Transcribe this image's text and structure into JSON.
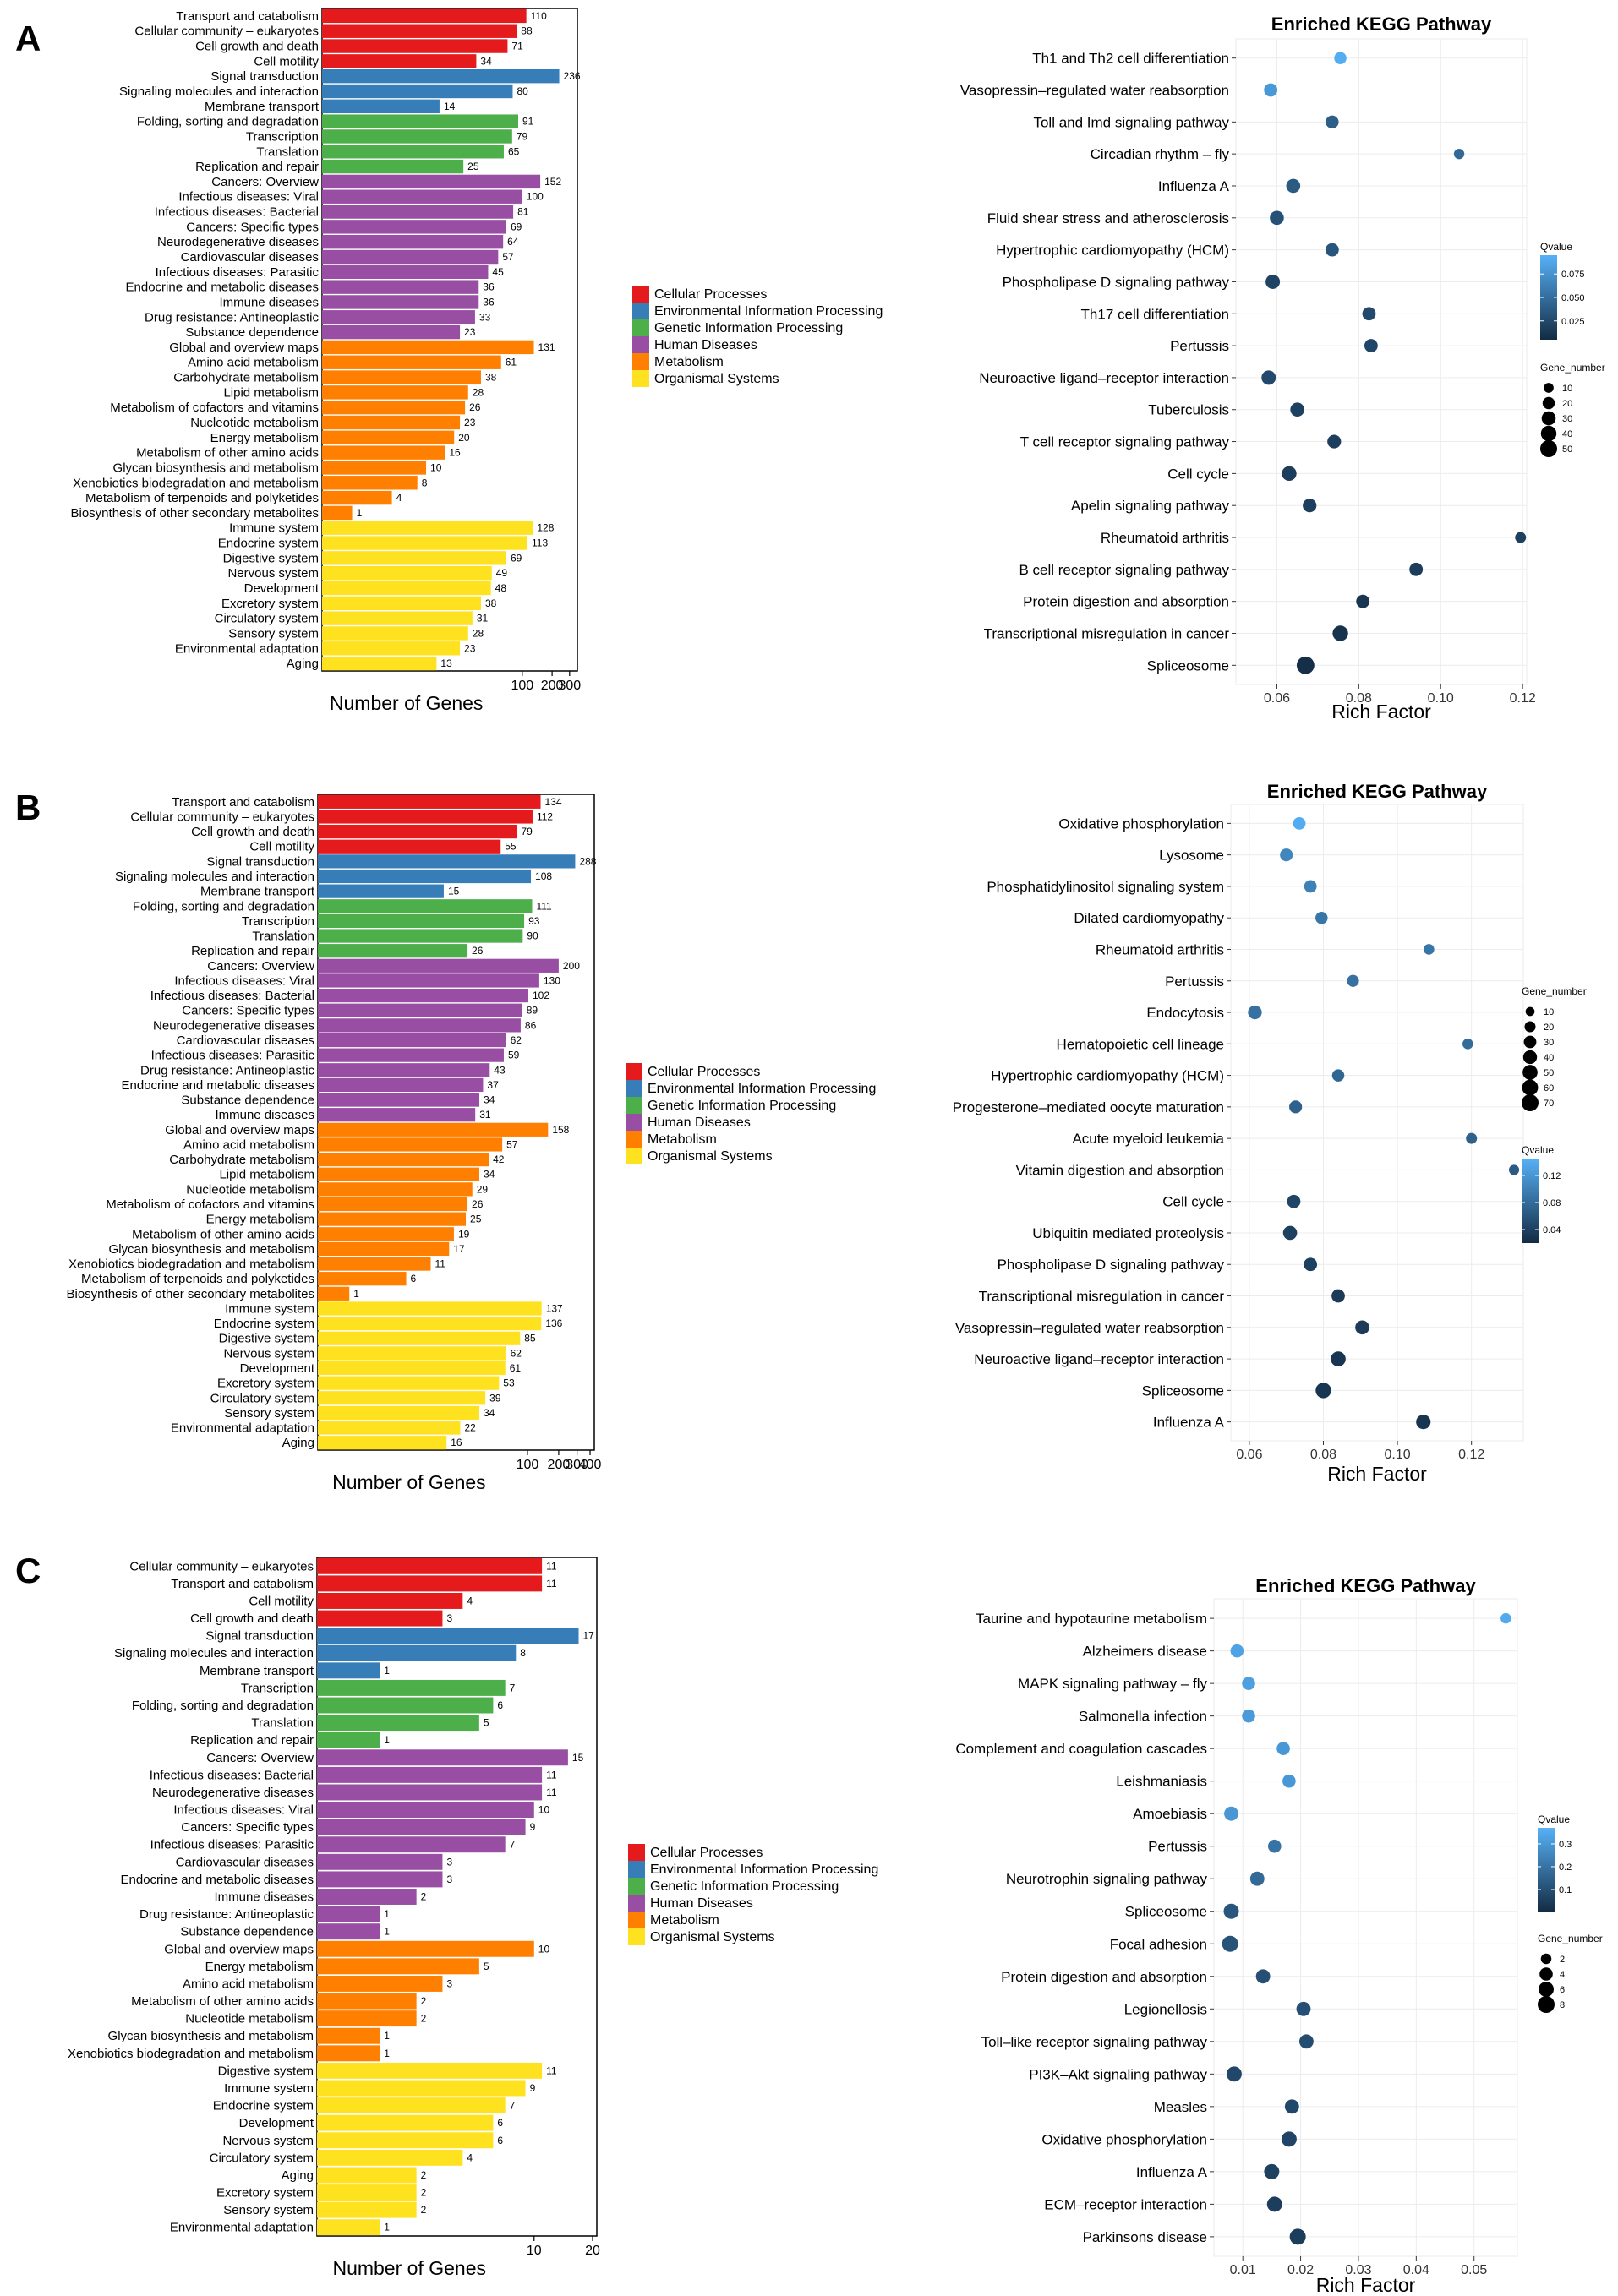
{
  "category_names": [
    "Cellular Processes",
    "Environmental Information Processing",
    "Genetic Information Processing",
    "Human Diseases",
    "Metabolism",
    "Organismal Systems"
  ],
  "category_colors": [
    "#e41a1c",
    "#377eb8",
    "#4daf4a",
    "#984ea3",
    "#ff7f00",
    "#ffe21f"
  ],
  "chart_data": [
    {
      "panel": "A",
      "type": "bar",
      "xlabel": "Number of Genes",
      "xticks": [
        100,
        200,
        300
      ],
      "xmax": 360,
      "scale": "log10",
      "categories": [
        "Transport and catabolism",
        "Cellular community – eukaryotes",
        "Cell growth and death",
        "Cell motility",
        "Signal transduction",
        "Signaling molecules and interaction",
        "Membrane transport",
        "Folding, sorting and degradation",
        "Transcription",
        "Translation",
        "Replication and repair",
        "Cancers: Overview",
        "Infectious diseases: Viral",
        "Infectious diseases: Bacterial",
        "Cancers: Specific types",
        "Neurodegenerative diseases",
        "Cardiovascular diseases",
        "Infectious diseases: Parasitic",
        "Endocrine and metabolic diseases",
        "Immune diseases",
        "Drug resistance: Antineoplastic",
        "Substance dependence",
        "Global and overview maps",
        "Amino acid metabolism",
        "Carbohydrate metabolism",
        "Lipid metabolism",
        "Metabolism of cofactors and vitamins",
        "Nucleotide metabolism",
        "Energy metabolism",
        "Metabolism of other amino acids",
        "Glycan biosynthesis and metabolism",
        "Xenobiotics biodegradation and metabolism",
        "Metabolism of terpenoids and polyketides",
        "Biosynthesis of other secondary metabolites",
        "Immune system",
        "Endocrine system",
        "Digestive system",
        "Nervous system",
        "Development",
        "Excretory system",
        "Circulatory system",
        "Sensory system",
        "Environmental adaptation",
        "Aging"
      ],
      "values": [
        110,
        88,
        71,
        34,
        236,
        80,
        14,
        91,
        79,
        65,
        25,
        152,
        100,
        81,
        69,
        64,
        57,
        45,
        36,
        36,
        33,
        23,
        131,
        61,
        38,
        28,
        26,
        23,
        20,
        16,
        10,
        8,
        4,
        1,
        128,
        113,
        69,
        49,
        48,
        38,
        31,
        28,
        23,
        13
      ],
      "groups": [
        0,
        0,
        0,
        0,
        1,
        1,
        1,
        2,
        2,
        2,
        2,
        3,
        3,
        3,
        3,
        3,
        3,
        3,
        3,
        3,
        3,
        3,
        4,
        4,
        4,
        4,
        4,
        4,
        4,
        4,
        4,
        4,
        4,
        4,
        5,
        5,
        5,
        5,
        5,
        5,
        5,
        5,
        5,
        5
      ]
    },
    {
      "panel": "A",
      "type": "scatter",
      "title": "Enriched KEGG Pathway",
      "xlabel": "Rich Factor",
      "xlim": [
        0.05,
        0.121
      ],
      "xticks": [
        0.06,
        0.08,
        0.1,
        0.12
      ],
      "xtick_labels": [
        "0.06",
        "0.08",
        "0.10",
        "0.12"
      ],
      "pathways": [
        "Th1 and Th2 cell differentiation",
        "Vasopressin–regulated water reabsorption",
        "Toll and Imd signaling pathway",
        "Circadian rhythm – fly",
        "Influenza A",
        "Fluid shear stress and atherosclerosis",
        "Hypertrophic cardiomyopathy (HCM)",
        "Phospholipase D signaling pathway",
        "Th17 cell differentiation",
        "Pertussis",
        "Neuroactive ligand–receptor interaction",
        "Tuberculosis",
        "T cell receptor signaling pathway",
        "Cell cycle",
        "Apelin signaling pathway",
        "Rheumatoid arthritis",
        "B cell receptor signaling pathway",
        "Protein digestion and absorption",
        "Transcriptional misregulation in cancer",
        "Spliceosome"
      ],
      "rich_factor": [
        0.0755,
        0.0585,
        0.0735,
        0.1045,
        0.064,
        0.06,
        0.0735,
        0.059,
        0.0825,
        0.083,
        0.058,
        0.065,
        0.074,
        0.063,
        0.068,
        0.1195,
        0.094,
        0.081,
        0.0755,
        0.067
      ],
      "gene_number": [
        20,
        26,
        24,
        12,
        30,
        30,
        26,
        32,
        26,
        26,
        32,
        30,
        28,
        34,
        28,
        14,
        26,
        26,
        40,
        56
      ],
      "qvalue": [
        0.092,
        0.079,
        0.04,
        0.046,
        0.037,
        0.03,
        0.033,
        0.021,
        0.026,
        0.023,
        0.025,
        0.02,
        0.018,
        0.017,
        0.018,
        0.019,
        0.017,
        0.012,
        0.01,
        0.008
      ],
      "size_legend": {
        "title": "Gene_number",
        "values": [
          10,
          20,
          30,
          40,
          50
        ],
        "labels": [
          "10",
          "20",
          "30",
          "40",
          "50"
        ]
      },
      "color_legend": {
        "title": "Qvalue",
        "min": 0.005,
        "max": 0.095,
        "ticks": [
          0.025,
          0.05,
          0.075
        ],
        "labels": [
          "0.025",
          "0.050",
          "0.075"
        ]
      },
      "legend_order": [
        "color",
        "size"
      ]
    },
    {
      "panel": "B",
      "type": "bar",
      "xlabel": "Number of Genes",
      "xticks": [
        100,
        200,
        300,
        400
      ],
      "xmax": 440,
      "scale": "log10",
      "categories": [
        "Transport and catabolism",
        "Cellular community – eukaryotes",
        "Cell growth and death",
        "Cell motility",
        "Signal transduction",
        "Signaling molecules and interaction",
        "Membrane transport",
        "Folding, sorting and degradation",
        "Transcription",
        "Translation",
        "Replication and repair",
        "Cancers: Overview",
        "Infectious diseases: Viral",
        "Infectious diseases: Bacterial",
        "Cancers: Specific types",
        "Neurodegenerative diseases",
        "Cardiovascular diseases",
        "Infectious diseases: Parasitic",
        "Drug resistance: Antineoplastic",
        "Endocrine and metabolic diseases",
        "Substance dependence",
        "Immune diseases",
        "Global and overview maps",
        "Amino acid metabolism",
        "Carbohydrate metabolism",
        "Lipid metabolism",
        "Nucleotide metabolism",
        "Metabolism of cofactors and vitamins",
        "Energy metabolism",
        "Metabolism of other amino acids",
        "Glycan biosynthesis and metabolism",
        "Xenobiotics biodegradation and metabolism",
        "Metabolism of terpenoids and polyketides",
        "Biosynthesis of other secondary metabolites",
        "Immune system",
        "Endocrine system",
        "Digestive system",
        "Nervous system",
        "Development",
        "Excretory system",
        "Circulatory system",
        "Sensory system",
        "Environmental adaptation",
        "Aging"
      ],
      "values": [
        134,
        112,
        79,
        55,
        288,
        108,
        15,
        111,
        93,
        90,
        26,
        200,
        130,
        102,
        89,
        86,
        62,
        59,
        43,
        37,
        34,
        31,
        158,
        57,
        42,
        34,
        29,
        26,
        25,
        19,
        17,
        11,
        6,
        1,
        137,
        136,
        85,
        62,
        61,
        53,
        39,
        34,
        22,
        16
      ],
      "groups": [
        0,
        0,
        0,
        0,
        1,
        1,
        1,
        2,
        2,
        2,
        2,
        3,
        3,
        3,
        3,
        3,
        3,
        3,
        3,
        3,
        3,
        3,
        4,
        4,
        4,
        4,
        4,
        4,
        4,
        4,
        4,
        4,
        4,
        4,
        5,
        5,
        5,
        5,
        5,
        5,
        5,
        5,
        5,
        5
      ]
    },
    {
      "panel": "B",
      "type": "scatter",
      "title": "Enriched KEGG Pathway",
      "xlabel": "Rich Factor",
      "xlim": [
        0.055,
        0.134
      ],
      "xticks": [
        0.06,
        0.08,
        0.1,
        0.12
      ],
      "xtick_labels": [
        "0.06",
        "0.08",
        "0.10",
        "0.12"
      ],
      "pathways": [
        "Oxidative phosphorylation",
        "Lysosome",
        "Phosphatidylinositol signaling system",
        "Dilated cardiomyopathy",
        "Rheumatoid arthritis",
        "Pertussis",
        "Endocytosis",
        "Hematopoietic cell lineage",
        "Hypertrophic cardiomyopathy (HCM)",
        "Progesterone–mediated oocyte maturation",
        "Acute myeloid leukemia",
        "Vitamin digestion and absorption",
        "Cell cycle",
        "Ubiquitin mediated proteolysis",
        "Phospholipase D signaling pathway",
        "Transcriptional misregulation in cancer",
        "Vasopressin–regulated water reabsorption",
        "Neuroactive ligand–receptor interaction",
        "Spliceosome",
        "Influenza A"
      ],
      "rich_factor": [
        0.0735,
        0.07,
        0.0765,
        0.0795,
        0.1085,
        0.088,
        0.0615,
        0.119,
        0.084,
        0.0725,
        0.12,
        0.1315,
        0.072,
        0.071,
        0.0765,
        0.084,
        0.0905,
        0.084,
        0.08,
        0.107
      ],
      "gene_number": [
        30,
        32,
        30,
        28,
        18,
        26,
        40,
        18,
        28,
        32,
        20,
        16,
        36,
        42,
        36,
        36,
        42,
        50,
        56,
        46
      ],
      "qvalue": [
        0.14,
        0.105,
        0.1,
        0.09,
        0.09,
        0.085,
        0.085,
        0.08,
        0.075,
        0.07,
        0.07,
        0.065,
        0.045,
        0.04,
        0.04,
        0.035,
        0.035,
        0.03,
        0.03,
        0.03
      ],
      "size_legend": {
        "title": "Gene_number",
        "values": [
          10,
          20,
          30,
          40,
          50,
          60,
          70
        ],
        "labels": [
          "10",
          "20",
          "30",
          "40",
          "50",
          "60",
          "70"
        ]
      },
      "color_legend": {
        "title": "Qvalue",
        "min": 0.02,
        "max": 0.145,
        "ticks": [
          0.04,
          0.08,
          0.12
        ],
        "labels": [
          "0.04",
          "0.08",
          "0.12"
        ]
      },
      "legend_order": [
        "size",
        "color"
      ]
    },
    {
      "panel": "C",
      "type": "bar",
      "xlabel": "Number of Genes",
      "xticks": [
        10,
        20
      ],
      "xmax": 22,
      "scale": "log10",
      "categories": [
        "Cellular community – eukaryotes",
        "Transport and catabolism",
        "Cell motility",
        "Cell growth and death",
        "Signal transduction",
        "Signaling molecules and interaction",
        "Membrane transport",
        "Transcription",
        "Folding, sorting and degradation",
        "Translation",
        "Replication and repair",
        "Cancers: Overview",
        "Infectious diseases: Bacterial",
        "Neurodegenerative diseases",
        "Infectious diseases: Viral",
        "Cancers: Specific types",
        "Infectious diseases: Parasitic",
        "Cardiovascular diseases",
        "Endocrine and metabolic diseases",
        "Immune diseases",
        "Drug resistance: Antineoplastic",
        "Substance dependence",
        "Global and overview maps",
        "Energy metabolism",
        "Amino acid metabolism",
        "Metabolism of other amino acids",
        "Nucleotide metabolism",
        "Glycan biosynthesis and metabolism",
        "Xenobiotics biodegradation and metabolism",
        "Digestive system",
        "Immune system",
        "Endocrine system",
        "Development",
        "Nervous system",
        "Circulatory system",
        "Aging",
        "Excretory system",
        "Sensory system",
        "Environmental adaptation"
      ],
      "values": [
        11,
        11,
        4,
        3,
        17,
        8,
        1,
        7,
        6,
        5,
        1,
        15,
        11,
        11,
        10,
        9,
        7,
        3,
        3,
        2,
        1,
        1,
        10,
        5,
        3,
        2,
        2,
        1,
        1,
        11,
        9,
        7,
        6,
        6,
        4,
        2,
        2,
        2,
        1
      ],
      "groups": [
        0,
        0,
        0,
        0,
        1,
        1,
        1,
        2,
        2,
        2,
        2,
        3,
        3,
        3,
        3,
        3,
        3,
        3,
        3,
        3,
        3,
        3,
        4,
        4,
        4,
        4,
        4,
        4,
        4,
        5,
        5,
        5,
        5,
        5,
        5,
        5,
        5,
        5,
        5
      ]
    },
    {
      "panel": "C",
      "type": "scatter",
      "title": "Enriched KEGG Pathway",
      "xlabel": "Rich Factor",
      "xlim": [
        0.005,
        0.0575
      ],
      "xticks": [
        0.01,
        0.02,
        0.03,
        0.04,
        0.05
      ],
      "xtick_labels": [
        "0.01",
        "0.02",
        "0.03",
        "0.04",
        "0.05"
      ],
      "pathways": [
        "Taurine and hypotaurine metabolism",
        "Alzheimers disease",
        "MAPK signaling pathway – fly",
        "Salmonella infection",
        "Complement and coagulation cascades",
        "Leishmaniasis",
        "Amoebiasis",
        "Pertussis",
        "Neurotrophin signaling pathway",
        "Spliceosome",
        "Focal adhesion",
        "Protein digestion and absorption",
        "Legionellosis",
        "Toll–like receptor signaling pathway",
        "PI3K–Akt signaling pathway",
        "Measles",
        "Oxidative phosphorylation",
        "Influenza A",
        "ECM–receptor interaction",
        "Parkinsons disease"
      ],
      "rich_factor": [
        0.0555,
        0.009,
        0.011,
        0.011,
        0.017,
        0.018,
        0.008,
        0.0155,
        0.0125,
        0.008,
        0.0078,
        0.0135,
        0.0205,
        0.021,
        0.0085,
        0.0185,
        0.018,
        0.015,
        0.0155,
        0.0195
      ],
      "gene_number": [
        2,
        4,
        4,
        4,
        4,
        4,
        5,
        4,
        5,
        6,
        7,
        5,
        5,
        5,
        6,
        5,
        6,
        6,
        6,
        7
      ],
      "qvalue": [
        0.35,
        0.33,
        0.32,
        0.31,
        0.3,
        0.3,
        0.3,
        0.2,
        0.17,
        0.12,
        0.11,
        0.1,
        0.1,
        0.09,
        0.08,
        0.08,
        0.07,
        0.06,
        0.05,
        0.05
      ],
      "size_legend": {
        "title": "Gene_number",
        "values": [
          2,
          4,
          6,
          8
        ],
        "labels": [
          "2",
          "4",
          "6",
          "8"
        ]
      },
      "color_legend": {
        "title": "Qvalue",
        "min": 0.0,
        "max": 0.37,
        "ticks": [
          0.1,
          0.2,
          0.3
        ],
        "labels": [
          "0.1",
          "0.2",
          "0.3"
        ]
      },
      "legend_order": [
        "color",
        "size"
      ]
    }
  ]
}
